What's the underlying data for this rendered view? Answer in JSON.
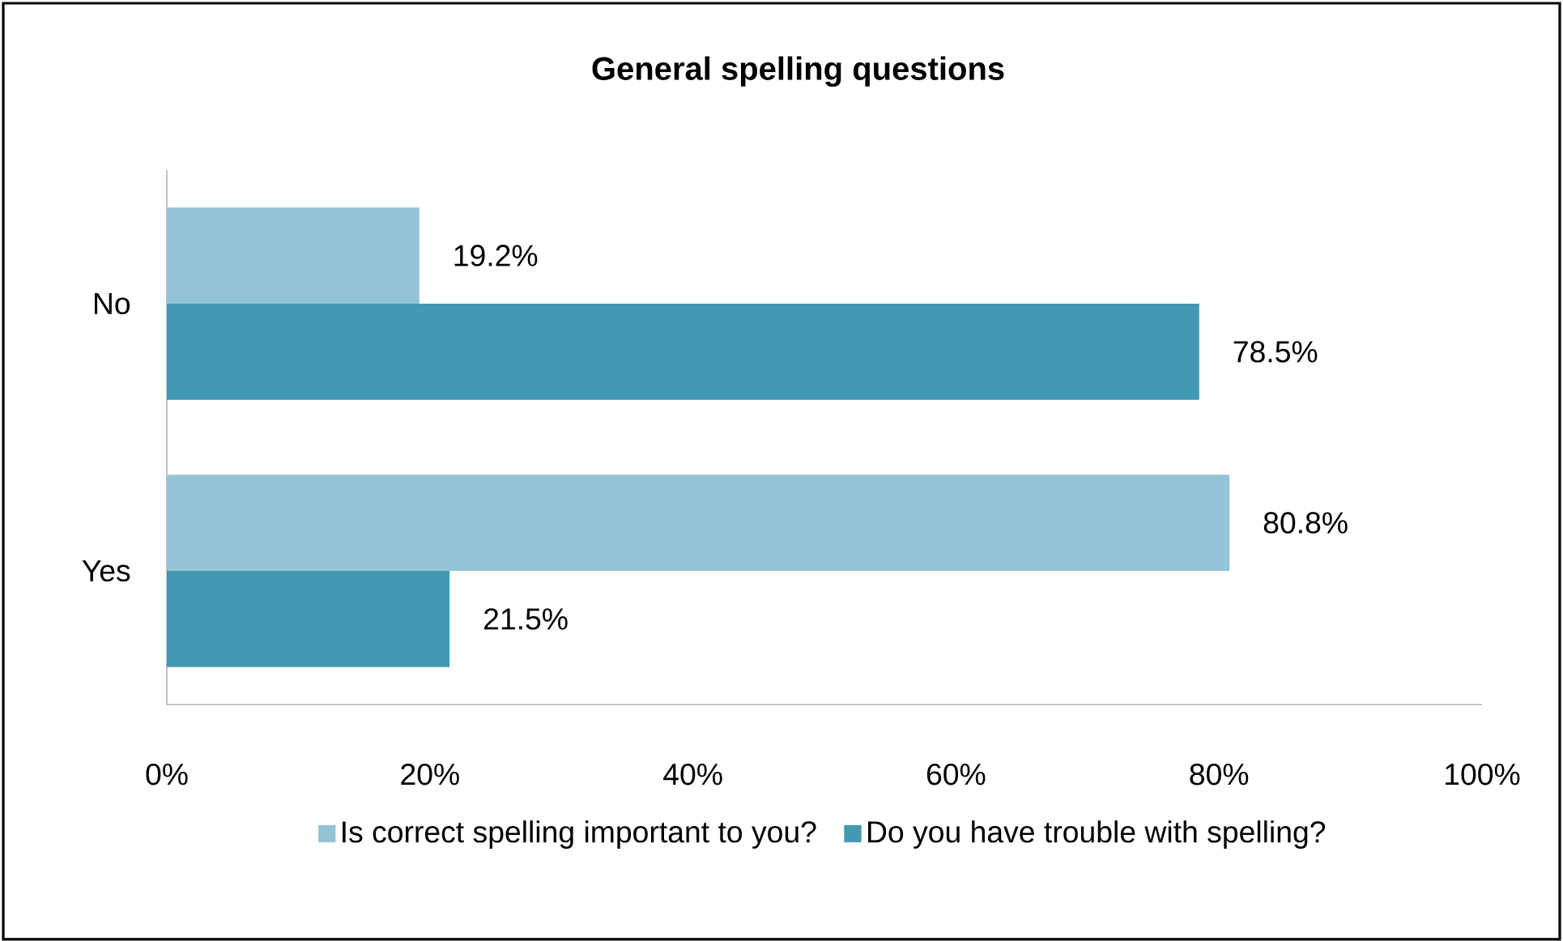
{
  "chart_data": {
    "type": "bar",
    "orientation": "horizontal",
    "title": "General spelling questions",
    "categories": [
      "No",
      "Yes"
    ],
    "series": [
      {
        "name": "Is correct spelling important to you?",
        "color": "#93c4d5",
        "values": [
          19.2,
          80.8
        ],
        "value_labels": [
          "19.2%",
          "80.8%"
        ]
      },
      {
        "name": "Do you have trouble with spelling?",
        "color": "#4399b1",
        "values": [
          78.5,
          21.5
        ],
        "value_labels": [
          "78.5%",
          "21.5%"
        ]
      }
    ],
    "xlim": [
      0,
      100
    ],
    "xticks": [
      {
        "value": 0,
        "label": "0%"
      },
      {
        "value": 20,
        "label": "20%"
      },
      {
        "value": 40,
        "label": "40%"
      },
      {
        "value": 60,
        "label": "60%"
      },
      {
        "value": 80,
        "label": "80%"
      },
      {
        "value": 100,
        "label": "100%"
      }
    ],
    "grid": false,
    "legend": "bottom"
  }
}
